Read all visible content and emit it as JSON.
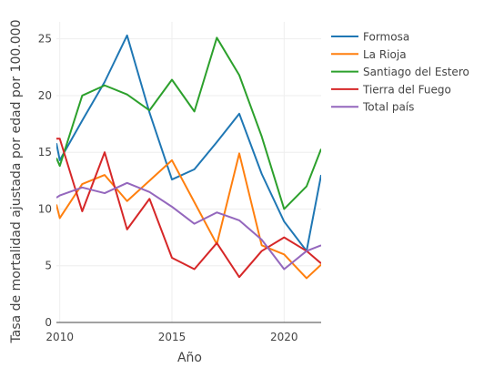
{
  "chart_data": {
    "type": "line",
    "title": "",
    "xlabel": "Año",
    "ylabel": "Tasa de mortalidad ajustada por edad por 100.000",
    "xlim": [
      2009.85,
      2021.65
    ],
    "ylim": [
      0,
      26.5
    ],
    "x_ticks": [
      2010,
      2015,
      2020
    ],
    "y_ticks": [
      0,
      5,
      10,
      15,
      20,
      25
    ],
    "grid": true,
    "legend_position": "right",
    "series": [
      {
        "name": "Formosa",
        "color": "#1f77b4",
        "x": [
          2009.85,
          2010,
          2011,
          2012,
          2013,
          2014,
          2015,
          2016,
          2017,
          2018,
          2019,
          2020,
          2021,
          2021.65
        ],
        "y": [
          15.8,
          14.3,
          17.8,
          21.2,
          25.3,
          18.5,
          12.6,
          13.5,
          15.9,
          18.4,
          13.1,
          8.9,
          6.3,
          13.0
        ]
      },
      {
        "name": "La Rioja",
        "color": "#ff7f0e",
        "x": [
          2009.85,
          2010,
          2011,
          2012,
          2013,
          2014,
          2015,
          2016,
          2017,
          2018,
          2019,
          2020,
          2021,
          2021.65
        ],
        "y": [
          10.4,
          9.2,
          12.2,
          13.0,
          10.7,
          12.5,
          14.3,
          10.6,
          6.9,
          14.9,
          6.8,
          6.0,
          3.9,
          5.1
        ]
      },
      {
        "name": "Santiago del Estero",
        "color": "#2ca02c",
        "x": [
          2009.85,
          2010,
          2011,
          2012,
          2013,
          2014,
          2015,
          2016,
          2017,
          2018,
          2019,
          2020,
          2021,
          2021.65
        ],
        "y": [
          14.5,
          13.8,
          20.0,
          20.9,
          20.1,
          18.7,
          21.4,
          18.6,
          25.1,
          21.8,
          16.4,
          10.0,
          12.0,
          15.3
        ]
      },
      {
        "name": "Tierra del Fuego",
        "color": "#d62728",
        "x": [
          2009.85,
          2010,
          2011,
          2012,
          2013,
          2014,
          2015,
          2016,
          2017,
          2018,
          2019,
          2020,
          2021,
          2021.65
        ],
        "y": [
          16.2,
          16.2,
          9.8,
          15.0,
          8.2,
          10.9,
          5.7,
          4.7,
          7.0,
          4.0,
          6.3,
          7.5,
          6.3,
          5.2
        ]
      },
      {
        "name": "Total país",
        "color": "#9467bd",
        "x": [
          2009.85,
          2010,
          2011,
          2012,
          2013,
          2014,
          2015,
          2016,
          2017,
          2018,
          2019,
          2020,
          2021,
          2021.65
        ],
        "y": [
          11.0,
          11.2,
          11.9,
          11.4,
          12.3,
          11.5,
          10.2,
          8.7,
          9.7,
          9.0,
          7.3,
          4.7,
          6.3,
          6.8
        ]
      }
    ]
  }
}
